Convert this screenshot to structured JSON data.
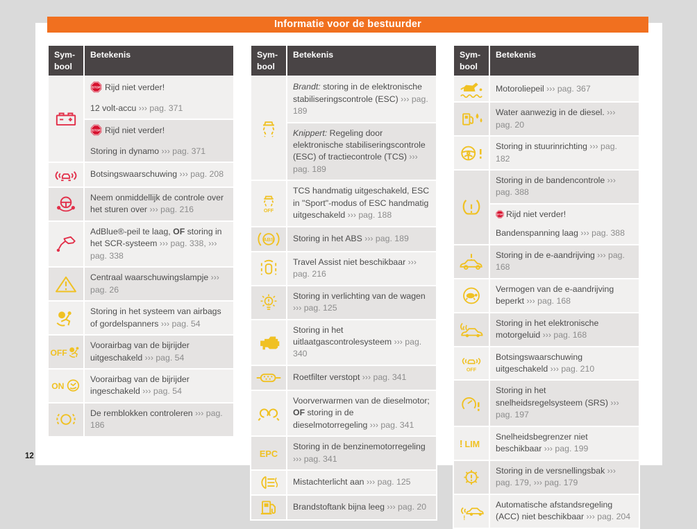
{
  "page_label": "12",
  "banner": {
    "title": "Informatie voor de bestuurder"
  },
  "col_header": {
    "symbol_line1": "Sym-",
    "symbol_line2": "bool",
    "meaning": "Betekenis"
  },
  "colors": {
    "accent_orange": "#f1701f",
    "table_header_gray": "#494445",
    "warn_red": "#e2304a",
    "warn_yellow": "#f0c123",
    "stop_badge_red": "#d6102d",
    "row_light": "#f1f0ef",
    "row_dark": "#e5e3e2"
  },
  "stop_label": "Rijd niet verder!",
  "tables": [
    {
      "rows": [
        {
          "icon": "battery-icon",
          "color": "red",
          "span": 2,
          "paras": [
            [
              {
                "ic": "stop-badge",
                "sz": "lg"
              },
              {
                "t": "Rijd niet verder!"
              }
            ],
            [
              {
                "t": "12 volt-accu "
              },
              {
                "t": "››› pag. 371",
                "s": "ref"
              }
            ]
          ]
        },
        {
          "cont": true,
          "paras": [
            [
              {
                "ic": "stop-badge",
                "sz": "lg"
              },
              {
                "t": "Rijd niet verder!"
              }
            ],
            [
              {
                "t": "Storing in dynamo "
              },
              {
                "t": "››› pag. 371",
                "s": "ref"
              }
            ]
          ]
        },
        {
          "icon": "collision-warning-icon",
          "color": "red",
          "paras": [
            [
              {
                "t": "Botsingswaarschuwing "
              },
              {
                "t": "››› pag. 208",
                "s": "ref"
              }
            ]
          ]
        },
        {
          "icon": "hands-steering-icon",
          "color": "red",
          "paras": [
            [
              {
                "t": "Neem onmiddellijk de controle over het sturen over "
              },
              {
                "t": "››› pag. 216",
                "s": "ref"
              }
            ]
          ]
        },
        {
          "icon": "adblue-icon",
          "color": "red",
          "paras": [
            [
              {
                "t": "AdBlue®-peil te laag, "
              },
              {
                "t": "OF",
                "s": "b"
              },
              {
                "t": " storing in het SCR-systeem "
              },
              {
                "t": "››› pag. 338,",
                "s": "ref"
              },
              {
                "t": " "
              },
              {
                "t": "››› pag. 338",
                "s": "ref"
              }
            ]
          ]
        },
        {
          "icon": "warning-triangle-icon",
          "color": "yellow",
          "paras": [
            [
              {
                "t": "Centraal waarschuwingslampje "
              },
              {
                "t": "››› pag. 26",
                "s": "ref"
              }
            ]
          ]
        },
        {
          "icon": "airbag-icon",
          "color": "yellow",
          "paras": [
            [
              {
                "t": "Storing in het systeem van airbags of gordelspanners "
              },
              {
                "t": "››› pag. 54",
                "s": "ref"
              }
            ]
          ]
        },
        {
          "icon": "airbag-off-icon",
          "color": "yellow",
          "paras": [
            [
              {
                "t": "Voorairbag van de bijrijder uitgeschakeld "
              },
              {
                "t": "››› pag. 54",
                "s": "ref"
              }
            ]
          ]
        },
        {
          "icon": "airbag-on-icon",
          "color": "yellow",
          "paras": [
            [
              {
                "t": "Voorairbag van de bijrijder ingeschakeld "
              },
              {
                "t": "››› pag. 54",
                "s": "ref"
              }
            ]
          ]
        },
        {
          "icon": "brake-pads-icon",
          "color": "yellow",
          "paras": [
            [
              {
                "t": "De remblokken controleren "
              },
              {
                "t": "››› pag. 186",
                "s": "ref"
              }
            ]
          ]
        }
      ]
    },
    {
      "rows": [
        {
          "icon": "esc-icon",
          "color": "yellow",
          "span": 2,
          "paras": [
            [
              {
                "t": "Brandt:",
                "s": "it"
              },
              {
                "t": " storing in de elektronische stabiliseringscontrole (ESC) "
              },
              {
                "t": "››› pag. 189",
                "s": "ref"
              }
            ]
          ]
        },
        {
          "cont": true,
          "paras": [
            [
              {
                "t": "Knippert:",
                "s": "it"
              },
              {
                "t": " Regeling door elektronische stabiliseringscontrole (ESC) of tractiecontrole (TCS) "
              },
              {
                "t": "››› pag. 189",
                "s": "ref"
              }
            ]
          ]
        },
        {
          "icon": "esc-off-icon",
          "color": "yellow",
          "paras": [
            [
              {
                "t": "TCS handmatig uitgeschakeld, ESC in \"Sport\"-modus of ESC handmatig uitgeschakeld "
              },
              {
                "t": "››› pag. 188",
                "s": "ref"
              }
            ]
          ]
        },
        {
          "icon": "abs-icon",
          "color": "yellow",
          "paras": [
            [
              {
                "t": "Storing in het ABS "
              },
              {
                "t": "››› pag. 189",
                "s": "ref"
              }
            ]
          ]
        },
        {
          "icon": "travel-assist-icon",
          "color": "yellow",
          "paras": [
            [
              {
                "t": "Travel Assist niet beschikbaar "
              },
              {
                "t": "››› pag. 216",
                "s": "ref"
              }
            ]
          ]
        },
        {
          "icon": "light-fault-icon",
          "color": "yellow",
          "paras": [
            [
              {
                "t": "Storing in verlichting van de wagen "
              },
              {
                "t": "››› pag. 125",
                "s": "ref"
              }
            ]
          ]
        },
        {
          "icon": "engine-icon",
          "color": "yellow",
          "paras": [
            [
              {
                "t": "Storing in het uitlaatgascontrolesysteem "
              },
              {
                "t": "››› pag. 340",
                "s": "ref"
              }
            ]
          ]
        },
        {
          "icon": "dpf-icon",
          "color": "yellow",
          "paras": [
            [
              {
                "t": "Roetfilter verstopt "
              },
              {
                "t": "››› pag. 341",
                "s": "ref"
              }
            ]
          ]
        },
        {
          "icon": "glow-plug-icon",
          "color": "yellow",
          "paras": [
            [
              {
                "t": "Voorverwarmen van de dieselmotor; "
              },
              {
                "t": "OF",
                "s": "b"
              },
              {
                "t": " storing in de dieselmotorregeling "
              },
              {
                "t": "››› pag. 341",
                "s": "ref"
              }
            ]
          ]
        },
        {
          "icon": "epc-icon",
          "color": "yellow",
          "paras": [
            [
              {
                "t": "Storing in de benzinemotorregeling "
              },
              {
                "t": "››› pag. 341",
                "s": "ref"
              }
            ]
          ]
        },
        {
          "icon": "rear-fog-icon",
          "color": "yellow",
          "paras": [
            [
              {
                "t": "Mistachterlicht aan "
              },
              {
                "t": "››› pag. 125",
                "s": "ref"
              }
            ]
          ]
        },
        {
          "icon": "fuel-icon",
          "color": "yellow",
          "paras": [
            [
              {
                "t": "Brandstoftank bijna leeg "
              },
              {
                "t": "››› pag. 20",
                "s": "ref"
              }
            ]
          ]
        }
      ]
    },
    {
      "rows": [
        {
          "icon": "oil-level-icon",
          "color": "yellow",
          "paras": [
            [
              {
                "t": "Motoroliepeil "
              },
              {
                "t": "››› pag. 367",
                "s": "ref"
              }
            ]
          ]
        },
        {
          "icon": "water-in-fuel-icon",
          "color": "yellow",
          "paras": [
            [
              {
                "t": "Water aanwezig in de diesel. "
              },
              {
                "t": "››› pag. 20",
                "s": "ref"
              }
            ]
          ]
        },
        {
          "icon": "steering-fault-icon",
          "color": "yellow",
          "paras": [
            [
              {
                "t": "Storing in stuurinrichting "
              },
              {
                "t": "››› pag. 182",
                "s": "ref"
              }
            ]
          ]
        },
        {
          "icon": "tpms-icon",
          "color": "yellow",
          "span": 2,
          "paras": [
            [
              {
                "t": "Storing in de bandencontrole "
              },
              {
                "t": "››› pag. 388",
                "s": "ref"
              }
            ]
          ]
        },
        {
          "cont": true,
          "paras": [
            [
              {
                "ic": "stop-badge",
                "sz": "sm"
              },
              {
                "t": "Rijd niet verder!"
              }
            ],
            [
              {
                "t": "Bandenspanning laag "
              },
              {
                "t": "››› pag. 388",
                "s": "ref"
              }
            ]
          ]
        },
        {
          "icon": "edrive-fault-icon",
          "color": "yellow",
          "paras": [
            [
              {
                "t": "Storing in de e-aandrijving "
              },
              {
                "t": "››› pag. 168",
                "s": "ref"
              }
            ]
          ]
        },
        {
          "icon": "power-limited-icon",
          "color": "yellow",
          "paras": [
            [
              {
                "t": "Vermogen van de e-aandrijving beperkt "
              },
              {
                "t": "››› pag. 168",
                "s": "ref"
              }
            ]
          ]
        },
        {
          "icon": "motor-sound-icon",
          "color": "yellow",
          "paras": [
            [
              {
                "t": "Storing in het elektronische motorgeluid "
              },
              {
                "t": "››› pag. 168",
                "s": "ref"
              }
            ]
          ]
        },
        {
          "icon": "collision-off-icon",
          "color": "yellow",
          "paras": [
            [
              {
                "t": "Botsingswaarschuwing uitgeschakeld "
              },
              {
                "t": "››› pag. 210",
                "s": "ref"
              }
            ]
          ]
        },
        {
          "icon": "cruise-fault-icon",
          "color": "yellow",
          "paras": [
            [
              {
                "t": "Storing in het snelheidsregelsysteem (SRS) "
              },
              {
                "t": "››› pag. 197",
                "s": "ref"
              }
            ]
          ]
        },
        {
          "icon": "lim-icon",
          "color": "yellow",
          "paras": [
            [
              {
                "t": "Snelheidsbegrenzer niet beschikbaar "
              },
              {
                "t": "››› pag. 199",
                "s": "ref"
              }
            ]
          ]
        },
        {
          "icon": "gearbox-icon",
          "color": "yellow",
          "paras": [
            [
              {
                "t": "Storing in de versnellingsbak "
              },
              {
                "t": "››› pag. 179,",
                "s": "ref"
              },
              {
                "t": " "
              },
              {
                "t": "››› pag. 179",
                "s": "ref"
              }
            ]
          ]
        },
        {
          "icon": "acc-icon",
          "color": "yellow",
          "paras": [
            [
              {
                "t": "Automatische afstandsregeling (ACC) niet beschikbaar "
              },
              {
                "t": "››› pag. 204",
                "s": "ref"
              }
            ]
          ]
        }
      ]
    }
  ]
}
